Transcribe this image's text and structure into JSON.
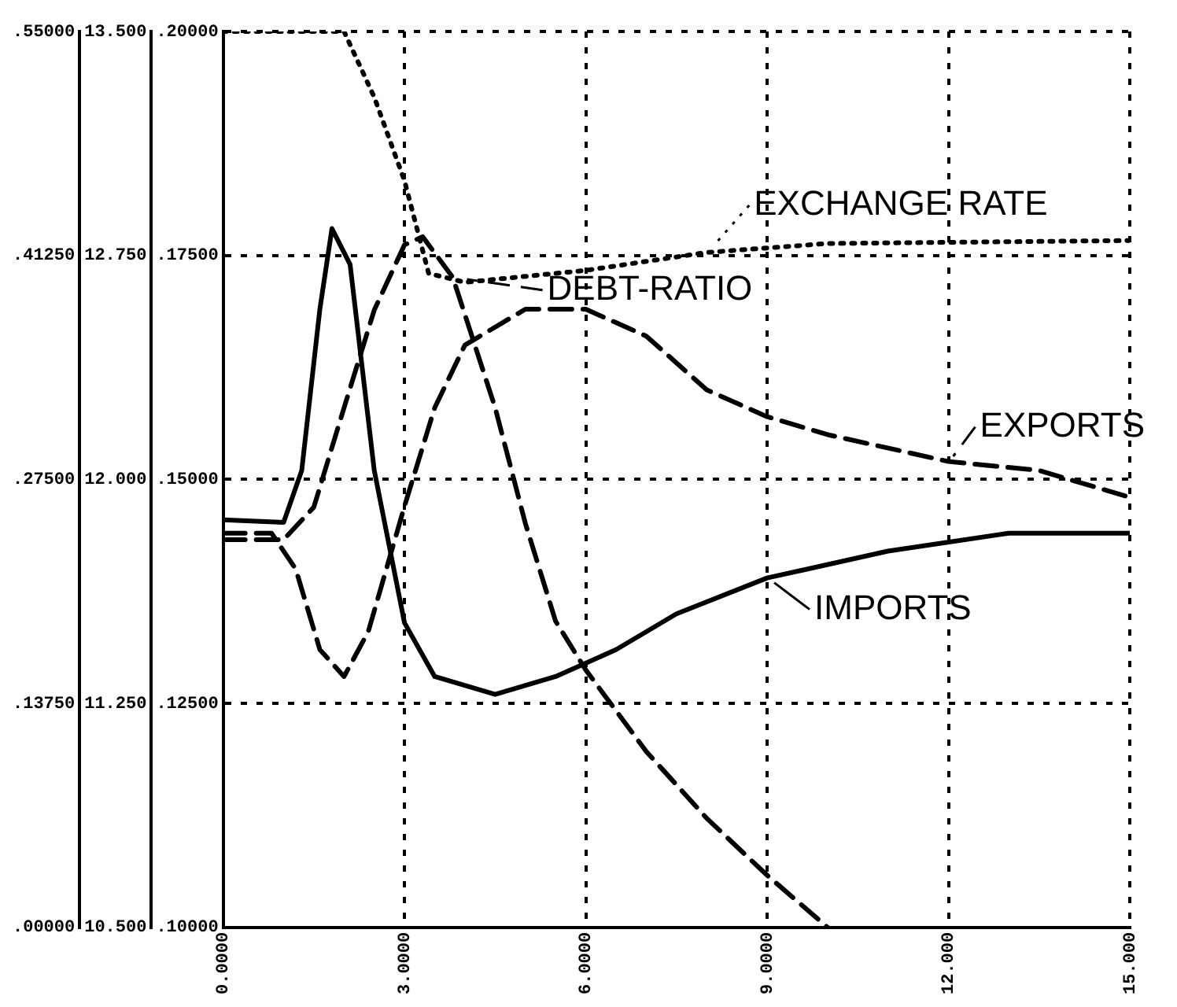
{
  "chart_data": {
    "type": "line",
    "grid": true,
    "legend": "right",
    "marker": "none",
    "xlim": [
      0,
      15
    ],
    "xticks": [
      {
        "value": 0,
        "label": "0.0000"
      },
      {
        "value": 3,
        "label": "3.0000"
      },
      {
        "value": 6,
        "label": "6.0000"
      },
      {
        "value": 9,
        "label": "9.0000"
      },
      {
        "value": 12,
        "label": "12.000"
      },
      {
        "value": 15,
        "label": "15.000"
      }
    ],
    "ylim": [
      0.1,
      0.2
    ],
    "yticks": [
      {
        "value": 0.1,
        "label": ".10000"
      },
      {
        "value": 0.125,
        "label": ".12500"
      },
      {
        "value": 0.15,
        "label": ".15000"
      },
      {
        "value": 0.175,
        "label": ".17500"
      },
      {
        "value": 0.2,
        "label": ".20000"
      }
    ],
    "y2lim": [
      10.5,
      13.5
    ],
    "y2ticks": [
      {
        "value": 10.5,
        "label": "10.500"
      },
      {
        "value": 11.25,
        "label": "11.250"
      },
      {
        "value": 12,
        "label": "12.000"
      },
      {
        "value": 12.75,
        "label": "12.750"
      },
      {
        "value": 13.5,
        "label": "13.500"
      }
    ],
    "y3lim": [
      0,
      0.55
    ],
    "y3ticks": [
      {
        "value": 0,
        "label": ".00000"
      },
      {
        "value": 0.1375,
        "label": ".13750"
      },
      {
        "value": 0.275,
        "label": ".27500"
      },
      {
        "value": 0.4125,
        "label": ".41250"
      },
      {
        "value": 0.55,
        "label": ".55000"
      }
    ],
    "series": [
      {
        "name": "EXCHANGE RATE",
        "color": "#000000",
        "axis": "y2",
        "line_style": "dotted",
        "x": [
          0,
          2,
          2.5,
          3,
          3.4,
          4,
          5,
          6,
          8,
          10,
          15
        ],
        "values": [
          13.5,
          13.5,
          13.28,
          13.0,
          12.69,
          12.66,
          12.68,
          12.7,
          12.76,
          12.79,
          12.8
        ]
      },
      {
        "name": "DEBT-RATIO",
        "color": "#000000",
        "axis": "y3",
        "line_style": "dashed",
        "x": [
          0,
          1,
          1.5,
          2,
          2.5,
          3,
          3.3,
          3.8,
          4.5,
          5,
          5.5,
          6,
          7,
          8,
          9,
          10
        ],
        "values": [
          0.238,
          0.238,
          0.258,
          0.319,
          0.379,
          0.419,
          0.424,
          0.399,
          0.319,
          0.248,
          0.188,
          0.158,
          0.108,
          0.067,
          0.032,
          0
        ]
      },
      {
        "name": "EXPORTS",
        "color": "#000000",
        "axis": "y",
        "line_style": "dashed",
        "x": [
          0,
          0.8,
          1.2,
          1.6,
          2,
          2.4,
          3,
          3.5,
          4,
          5,
          6,
          7,
          8,
          9,
          10,
          12,
          13.5,
          15
        ],
        "values": [
          0.144,
          0.144,
          0.14,
          0.131,
          0.128,
          0.133,
          0.147,
          0.158,
          0.165,
          0.169,
          0.169,
          0.166,
          0.16,
          0.157,
          0.155,
          0.152,
          0.151,
          0.148
        ]
      },
      {
        "name": "IMPORTS",
        "color": "#000000",
        "axis": "y",
        "line_style": "solid",
        "x": [
          0,
          1,
          1.3,
          1.6,
          1.8,
          2.1,
          2.5,
          3,
          3.5,
          4.5,
          5.5,
          6.5,
          7.5,
          9,
          11,
          13,
          15
        ],
        "values": [
          0.1455,
          0.1452,
          0.151,
          0.169,
          0.178,
          0.174,
          0.151,
          0.134,
          0.128,
          0.126,
          0.128,
          0.131,
          0.135,
          0.139,
          0.142,
          0.144,
          0.144
        ]
      }
    ]
  }
}
